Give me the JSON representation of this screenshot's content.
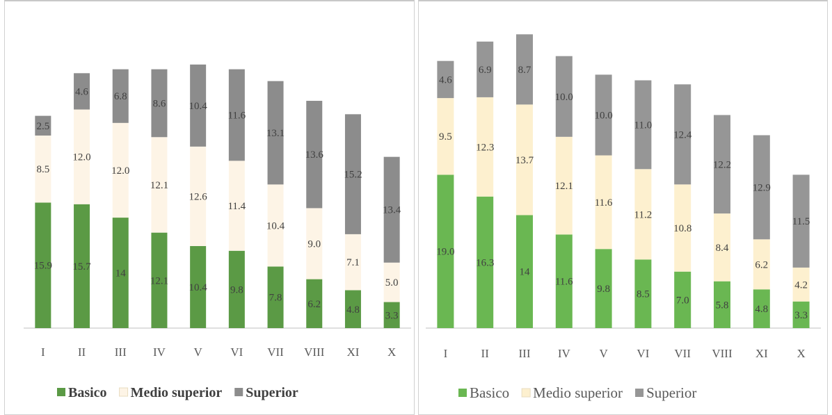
{
  "colors": {
    "Basico_left": "#5b9a45",
    "Medio_left": "#fdf4e6",
    "Superior_left": "#8c8c8c",
    "Basico_right": "#6ab752",
    "Medio_right": "#fdf0cf",
    "Superior_right": "#969696"
  },
  "chart_data": [
    {
      "type": "bar",
      "stacked": true,
      "categories": [
        "I",
        "II",
        "III",
        "IV",
        "V",
        "VI",
        "VII",
        "VIII",
        "XI",
        "X"
      ],
      "series": [
        {
          "name": "Basico",
          "values": [
            15.9,
            15.7,
            14,
            12.1,
            10.4,
            9.8,
            7.8,
            6.2,
            4.8,
            3.3
          ],
          "labels": [
            "15.9",
            "15.7",
            "14",
            "12.1",
            "10.4",
            "9.8",
            "7.8",
            "6.2",
            "4.8",
            "3.3"
          ]
        },
        {
          "name": "Medio superior",
          "values": [
            8.5,
            12.0,
            12.0,
            12.1,
            12.6,
            11.4,
            10.4,
            9.0,
            7.1,
            5.0
          ],
          "labels": [
            "8.5",
            "12.0",
            "12.0",
            "12.1",
            "12.6",
            "11.4",
            "10.4",
            "9.0",
            "7.1",
            "5.0"
          ]
        },
        {
          "name": "Superior",
          "values": [
            2.5,
            4.6,
            6.8,
            8.6,
            10.4,
            11.6,
            13.1,
            13.6,
            15.2,
            13.4
          ],
          "labels": [
            "2.5",
            "4.6",
            "6.8",
            "8.6",
            "10.4",
            "11.6",
            "13.1",
            "13.6",
            "15.2",
            "13.4"
          ]
        }
      ],
      "legend": "bottom",
      "grid": false,
      "ylim": [
        0,
        34
      ]
    },
    {
      "type": "bar",
      "stacked": true,
      "categories": [
        "I",
        "II",
        "III",
        "IV",
        "V",
        "VI",
        "VII",
        "VIII",
        "XI",
        "X"
      ],
      "series": [
        {
          "name": "Basico",
          "values": [
            19.0,
            16.3,
            14,
            11.6,
            9.8,
            8.5,
            7.0,
            5.8,
            4.8,
            3.3
          ],
          "labels": [
            "19.0",
            "16.3",
            "14",
            "11.6",
            "9.8",
            "8.5",
            "7.0",
            "5.8",
            "4.8",
            "3.3"
          ]
        },
        {
          "name": "Medio superior",
          "values": [
            9.5,
            12.3,
            13.7,
            12.1,
            11.6,
            11.2,
            10.8,
            8.4,
            6.2,
            4.2
          ],
          "labels": [
            "9.5",
            "12.3",
            "13.7",
            "12.1",
            "11.6",
            "11.2",
            "10.8",
            "8.4",
            "6.2",
            "4.2"
          ]
        },
        {
          "name": "Superior",
          "values": [
            4.6,
            6.9,
            8.7,
            10.0,
            10.0,
            11.0,
            12.4,
            12.2,
            12.9,
            11.5
          ],
          "labels": [
            "4.6",
            "6.9",
            "8.7",
            "10.0",
            "10.0",
            "11.0",
            "12.4",
            "12.2",
            "12.9",
            "11.5"
          ]
        }
      ],
      "legend": "bottom",
      "grid": false,
      "ylim": [
        0,
        36
      ]
    }
  ]
}
